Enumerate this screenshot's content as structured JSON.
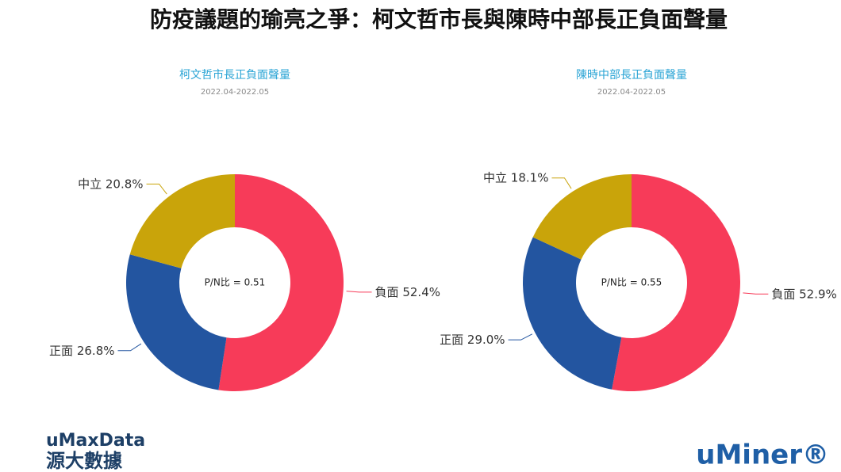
{
  "title": "防疫議題的瑜亮之爭：柯文哲市長與陳時中部長正負面聲量",
  "chart_data": [
    {
      "type": "donut",
      "title": "柯文哲市長正負面聲量",
      "subtitle": "2022.04-2022.05",
      "center_label": "P/N比 = 0.51",
      "categories": [
        "負面",
        "正面",
        "中立"
      ],
      "values": [
        52.4,
        26.8,
        20.8
      ],
      "value_labels": [
        "52.4%",
        "26.8%",
        "20.8%"
      ],
      "colors": [
        "#f73b59",
        "#2355a0",
        "#c9a40a"
      ]
    },
    {
      "type": "donut",
      "title": "陳時中部長正負面聲量",
      "subtitle": "2022.04-2022.05",
      "center_label": "P/N比 = 0.55",
      "categories": [
        "負面",
        "正面",
        "中立"
      ],
      "values": [
        52.9,
        29.0,
        18.1
      ],
      "value_labels": [
        "52.9%",
        "29.0%",
        "18.1%"
      ],
      "colors": [
        "#f73b59",
        "#2355a0",
        "#c9a40a"
      ]
    }
  ],
  "logos": {
    "left_top": "uMaxData",
    "left_bottom": "源大數據",
    "right": "uMiner®"
  }
}
